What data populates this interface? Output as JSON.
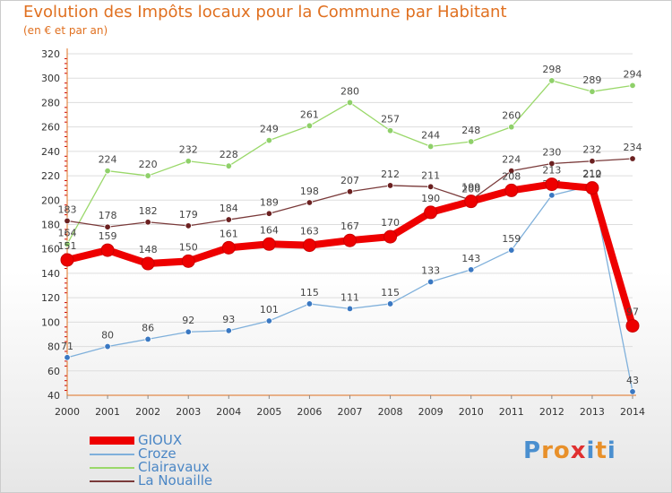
{
  "title": "Evolution des Impôts locaux pour la Commune par Habitant",
  "subtitle": "(en € et par an)",
  "logo": [
    "P",
    "r",
    "o",
    "x",
    "i",
    "t",
    "i"
  ],
  "colors": {
    "text": "#e07020",
    "axis": "#e07020",
    "grid": "#dddddd",
    "tick_marks": "#cc0000",
    "legend_text": "#4a86c5",
    "logo_letters": [
      "#4a8fcf",
      "#e8902a",
      "#e8902a",
      "#e03030",
      "#4a8fcf",
      "#e8902a",
      "#4a8fcf"
    ]
  },
  "chart_data": {
    "type": "line",
    "title": "Evolution des Impôts locaux pour la Commune par Habitant",
    "subtitle": "(en € et par an)",
    "xlabel": "",
    "ylabel": "",
    "x": [
      "2000",
      "2001",
      "2002",
      "2003",
      "2004",
      "2005",
      "2006",
      "2007",
      "2008",
      "2009",
      "2010",
      "2011",
      "2012",
      "2013",
      "2014"
    ],
    "ylim": [
      40,
      320
    ],
    "yticks": [
      40,
      60,
      80,
      100,
      120,
      140,
      160,
      180,
      200,
      220,
      240,
      260,
      280,
      300,
      320
    ],
    "grid": true,
    "legend_position": "bottom-left",
    "series": [
      {
        "name": "GIOUX",
        "color": "#ee0000",
        "marker": "#ee0000",
        "thick": true,
        "values": [
          151,
          159,
          148,
          150,
          161,
          164,
          163,
          167,
          170,
          190,
          199,
          208,
          213,
          210,
          97
        ]
      },
      {
        "name": "Croze",
        "color": "#7fb0db",
        "marker": "#3a78c2",
        "thick": false,
        "values": [
          71,
          80,
          86,
          92,
          93,
          101,
          115,
          111,
          115,
          133,
          143,
          159,
          204,
          212,
          43
        ]
      },
      {
        "name": "Clairavaux",
        "color": "#9ad86a",
        "marker": "#8fd06a",
        "thick": false,
        "values": [
          164,
          224,
          220,
          232,
          228,
          249,
          261,
          280,
          257,
          244,
          248,
          260,
          298,
          289,
          294
        ]
      },
      {
        "name": "La Nouaille",
        "color": "#7a3a3a",
        "marker": "#6b2020",
        "thick": false,
        "values": [
          183,
          178,
          182,
          179,
          184,
          189,
          198,
          207,
          212,
          211,
          200,
          224,
          230,
          232,
          234
        ]
      }
    ]
  }
}
